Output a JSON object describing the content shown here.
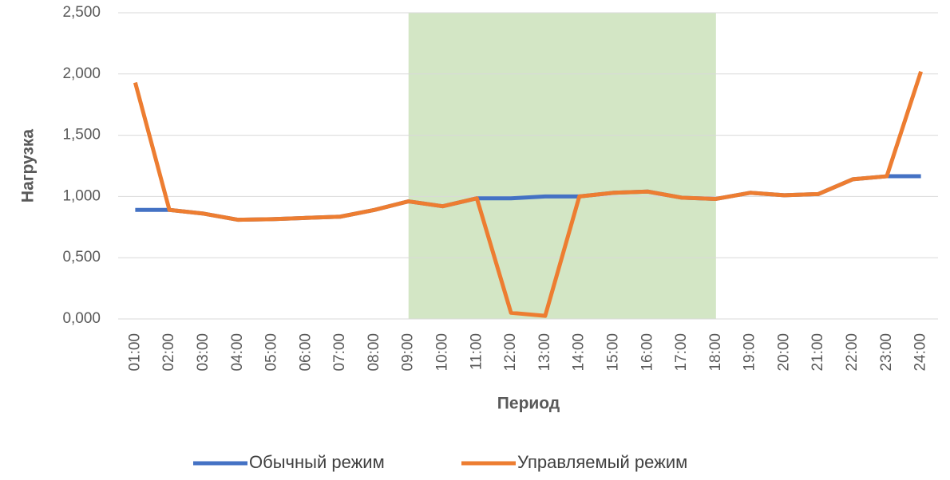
{
  "chart_data": {
    "type": "line",
    "y_axis_title": "Нагрузка",
    "x_axis_title": "Период",
    "categories": [
      "01:00",
      "02:00",
      "03:00",
      "04:00",
      "05:00",
      "06:00",
      "07:00",
      "08:00",
      "09:00",
      "10:00",
      "11:00",
      "12:00",
      "13:00",
      "14:00",
      "15:00",
      "16:00",
      "17:00",
      "18:00",
      "19:00",
      "20:00",
      "21:00",
      "22:00",
      "23:00",
      "24:00"
    ],
    "series": [
      {
        "name": "Обычный режим",
        "color": "#4472c4",
        "values": [
          0.89,
          0.89,
          0.86,
          0.81,
          0.815,
          0.825,
          0.835,
          0.89,
          0.96,
          0.92,
          0.985,
          0.985,
          1.0,
          1.0,
          1.03,
          1.04,
          0.99,
          0.98,
          1.03,
          1.01,
          1.02,
          1.14,
          1.165,
          1.165
        ]
      },
      {
        "name": "Управляемый режим",
        "color": "#ed7d31",
        "values": [
          1.93,
          0.89,
          0.86,
          0.81,
          0.815,
          0.825,
          0.835,
          0.89,
          0.96,
          0.92,
          0.985,
          0.05,
          0.025,
          1.0,
          1.03,
          1.04,
          0.99,
          0.98,
          1.03,
          1.01,
          1.02,
          1.14,
          1.165,
          2.02
        ]
      }
    ],
    "ylim": [
      0,
      2.5
    ],
    "yticks": [
      {
        "value": 0,
        "label": "0,000"
      },
      {
        "value": 0.5,
        "label": "0,500"
      },
      {
        "value": 1,
        "label": "1,000"
      },
      {
        "value": 1.5,
        "label": "1,500"
      },
      {
        "value": 2,
        "label": "2,000"
      },
      {
        "value": 2.5,
        "label": "2,500"
      }
    ],
    "grid": true,
    "legend": "bottom",
    "shade": {
      "from": "09:00",
      "to": "18:00",
      "color": "#d3e6c5"
    }
  }
}
